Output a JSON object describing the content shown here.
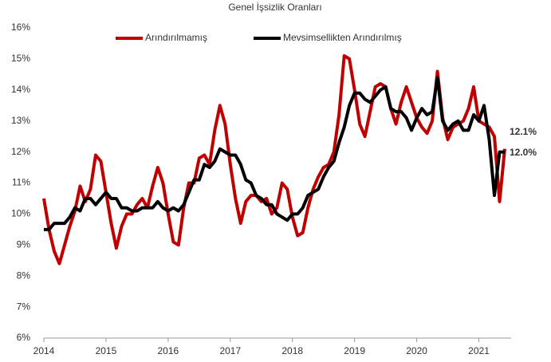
{
  "chart_data": {
    "type": "line",
    "title": "Genel İşsizlik Oranları",
    "categories": [
      "2014",
      null,
      null,
      null,
      null,
      null,
      null,
      null,
      null,
      null,
      null,
      null,
      "2015",
      null,
      null,
      null,
      null,
      null,
      null,
      null,
      null,
      null,
      null,
      null,
      "2016",
      null,
      null,
      null,
      null,
      null,
      null,
      null,
      null,
      null,
      null,
      null,
      "2017",
      null,
      null,
      null,
      null,
      null,
      null,
      null,
      null,
      null,
      null,
      null,
      "2018",
      null,
      null,
      null,
      null,
      null,
      null,
      null,
      null,
      null,
      null,
      null,
      "2019",
      null,
      null,
      null,
      null,
      null,
      null,
      null,
      null,
      null,
      null,
      null,
      "2020",
      null,
      null,
      null,
      null,
      null,
      null,
      null,
      null,
      null,
      null,
      null,
      "2021",
      null,
      null,
      null,
      null,
      null
    ],
    "series": [
      {
        "name": "Arındırılmamış",
        "color": "#c00000",
        "values": [
          10.5,
          9.5,
          8.8,
          8.4,
          9.0,
          9.6,
          10.1,
          10.9,
          10.4,
          10.8,
          11.9,
          11.7,
          10.7,
          9.7,
          8.9,
          9.6,
          10.0,
          10.0,
          10.3,
          10.5,
          10.2,
          10.9,
          11.5,
          11.0,
          10.0,
          9.1,
          9.0,
          10.2,
          11.0,
          11.0,
          11.8,
          11.9,
          11.6,
          12.7,
          13.5,
          12.9,
          11.6,
          10.5,
          9.7,
          10.4,
          10.6,
          10.6,
          10.4,
          10.5,
          10.0,
          10.2,
          11.0,
          10.8,
          9.9,
          9.3,
          9.4,
          10.2,
          10.8,
          11.2,
          11.5,
          11.6,
          12.0,
          13.2,
          15.1,
          15.0,
          14.0,
          12.9,
          12.5,
          13.3,
          14.1,
          14.2,
          14.1,
          13.4,
          12.9,
          13.6,
          14.1,
          13.6,
          13.1,
          12.8,
          12.6,
          13.0,
          14.6,
          13.1,
          12.4,
          12.8,
          12.9,
          13.0,
          13.4,
          14.1,
          13.0,
          12.9,
          12.8,
          12.5,
          10.4,
          12.1
        ],
        "value_labels": [
          null,
          null,
          null,
          null,
          null,
          null,
          null,
          null,
          null,
          null,
          null,
          null,
          null,
          null,
          null,
          null,
          null,
          null,
          null,
          null,
          null,
          null,
          null,
          null,
          null,
          null,
          null,
          null,
          null,
          null,
          null,
          null,
          null,
          null,
          null,
          null,
          null,
          null,
          null,
          null,
          null,
          null,
          null,
          null,
          null,
          null,
          null,
          null,
          null,
          null,
          null,
          null,
          null,
          null,
          null,
          null,
          null,
          null,
          null,
          null,
          null,
          null,
          null,
          null,
          null,
          null,
          null,
          null,
          null,
          null,
          null,
          null,
          null,
          null,
          null,
          null,
          null,
          null,
          null,
          null,
          null,
          null,
          null,
          null,
          null,
          null,
          null,
          null,
          null,
          "12.1%"
        ]
      },
      {
        "name": "Mevsimsellikten Arındırılmış",
        "color": "#000000",
        "values": [
          9.5,
          9.5,
          9.7,
          9.7,
          9.7,
          9.9,
          10.2,
          10.1,
          10.5,
          10.5,
          10.3,
          10.5,
          10.7,
          10.5,
          10.5,
          10.2,
          10.2,
          10.1,
          10.1,
          10.2,
          10.2,
          10.2,
          10.4,
          10.2,
          10.1,
          10.2,
          10.1,
          10.3,
          10.7,
          11.1,
          11.1,
          11.6,
          11.5,
          11.7,
          12.1,
          12.0,
          11.9,
          11.9,
          11.6,
          11.1,
          11.0,
          10.6,
          10.5,
          10.3,
          10.3,
          10.0,
          9.9,
          9.8,
          10.0,
          10.0,
          10.2,
          10.6,
          10.7,
          10.8,
          11.2,
          11.5,
          11.7,
          12.3,
          12.8,
          13.5,
          13.9,
          13.9,
          13.7,
          13.6,
          13.8,
          14.0,
          14.1,
          13.4,
          13.3,
          13.3,
          13.1,
          12.7,
          13.1,
          13.4,
          13.2,
          13.3,
          14.4,
          13.0,
          12.7,
          12.9,
          13.0,
          12.7,
          12.7,
          13.2,
          13.0,
          13.5,
          12.4,
          10.6,
          12.0,
          12.0
        ],
        "value_labels": [
          null,
          null,
          null,
          null,
          null,
          null,
          null,
          null,
          null,
          null,
          null,
          null,
          null,
          null,
          null,
          null,
          null,
          null,
          null,
          null,
          null,
          null,
          null,
          null,
          null,
          null,
          null,
          null,
          null,
          null,
          null,
          null,
          null,
          null,
          null,
          null,
          null,
          null,
          null,
          null,
          null,
          null,
          null,
          null,
          null,
          null,
          null,
          null,
          null,
          null,
          null,
          null,
          null,
          null,
          null,
          null,
          null,
          null,
          null,
          null,
          null,
          null,
          null,
          null,
          null,
          null,
          null,
          null,
          null,
          null,
          null,
          null,
          null,
          null,
          null,
          null,
          null,
          null,
          null,
          null,
          null,
          null,
          null,
          null,
          null,
          null,
          null,
          null,
          null,
          "12.0%"
        ]
      }
    ],
    "ylim": [
      6,
      16
    ],
    "yticks": [
      {
        "value": 6,
        "label": "6%"
      },
      {
        "value": 7,
        "label": "7%"
      },
      {
        "value": 8,
        "label": "8%"
      },
      {
        "value": 9,
        "label": "9%"
      },
      {
        "value": 10,
        "label": "10%"
      },
      {
        "value": 11,
        "label": "11%"
      },
      {
        "value": 12,
        "label": "12%"
      },
      {
        "value": 13,
        "label": "13%"
      },
      {
        "value": 14,
        "label": "14%"
      },
      {
        "value": 15,
        "label": "15%"
      },
      {
        "value": 16,
        "label": "16%"
      }
    ],
    "grid": false
  }
}
